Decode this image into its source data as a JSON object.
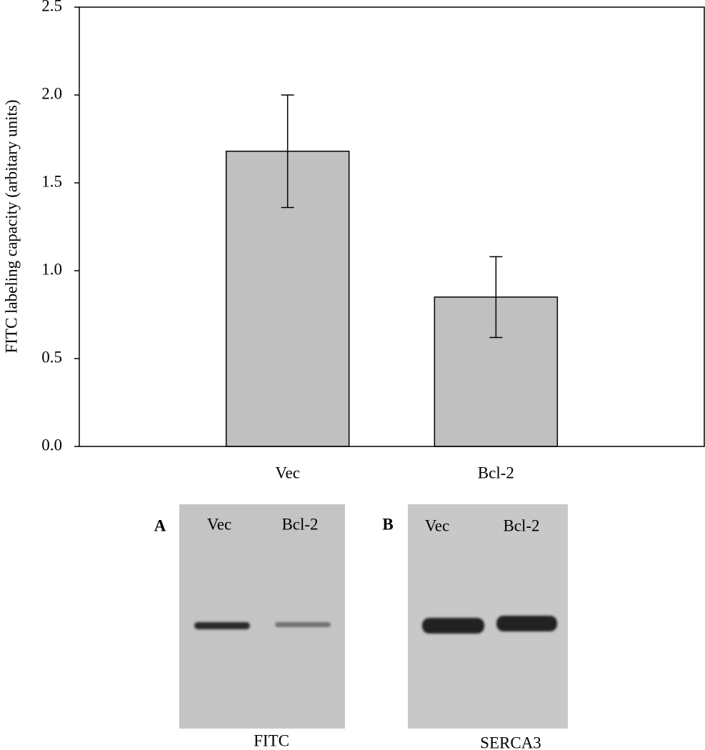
{
  "chart_data": {
    "type": "bar",
    "ylabel": "FITC labeling capacity (arbitary units)",
    "categories": [
      "Vec",
      "Bcl-2"
    ],
    "values": [
      1.68,
      0.85
    ],
    "errors": [
      0.32,
      0.23
    ],
    "color": "#c0c0c0",
    "ylim": [
      0,
      2.5
    ],
    "yticks": [
      {
        "value": 0,
        "label": "0.0"
      },
      0.5,
      {
        "value": 1,
        "label": "1.0"
      },
      1.5,
      {
        "value": 2,
        "label": "2.0"
      },
      2.5
    ]
  },
  "blots": [
    {
      "letter": "A",
      "lanes": [
        "Vec",
        "Bcl-2"
      ],
      "caption": "FITC"
    },
    {
      "letter": "B",
      "lanes": [
        "Vec",
        "Bcl-2"
      ],
      "caption": "SERCA3"
    }
  ]
}
